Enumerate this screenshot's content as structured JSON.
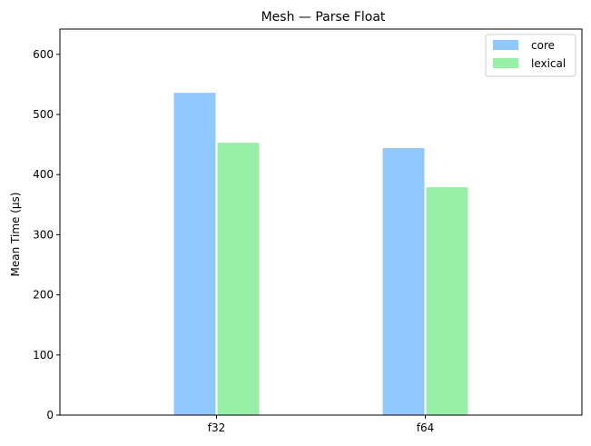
{
  "chart_data": {
    "type": "bar",
    "title": "Mesh — Parse Float",
    "xlabel": "",
    "ylabel": "Mean Time (μs)",
    "categories": [
      "f32",
      "f64"
    ],
    "series": [
      {
        "name": "core",
        "values": [
          536,
          444
        ],
        "color": "#90c8ff"
      },
      {
        "name": "lexical",
        "values": [
          453,
          379
        ],
        "color": "#98f0a8"
      }
    ],
    "ylim": [
      0,
      642
    ],
    "yticks": [
      0,
      100,
      200,
      300,
      400,
      500,
      600
    ],
    "grid": false,
    "legend_position": "top-right"
  }
}
